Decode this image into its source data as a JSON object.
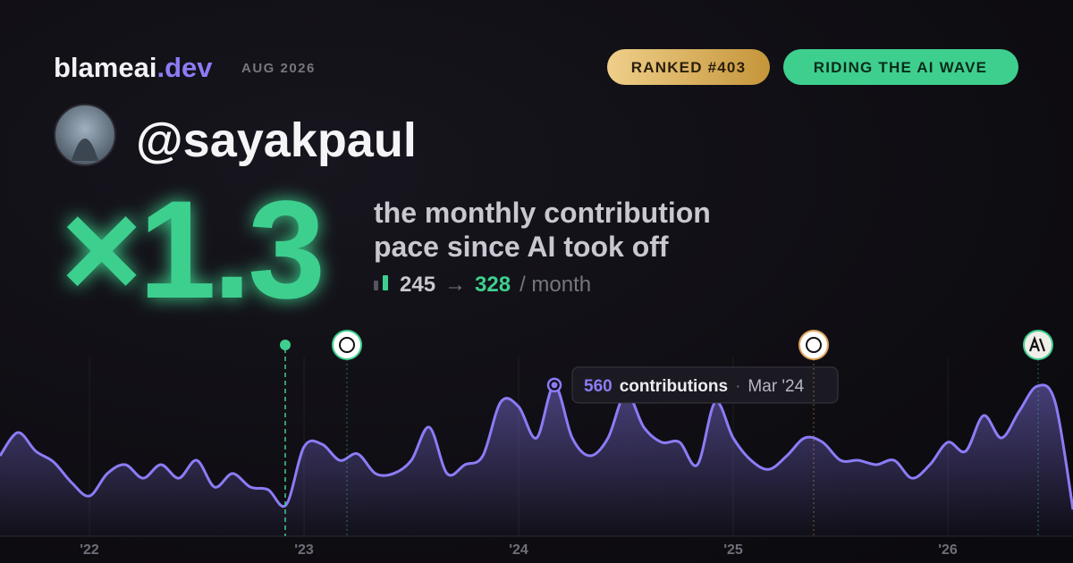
{
  "header": {
    "brand": "blameai",
    "brand_suffix": ".dev",
    "date": "AUG 2026",
    "badges": [
      "RANKED #403",
      "RIDING THE AI WAVE"
    ]
  },
  "profile": {
    "handle": "@sayakpaul"
  },
  "headline": {
    "multiplier": "×1.3",
    "lines": [
      "the monthly contribution",
      "pace since AI took off"
    ],
    "before": "245",
    "arrow": "→",
    "after": "328",
    "unit": "/ month"
  },
  "chart_data": {
    "type": "line",
    "categories": [
      null,
      null,
      null,
      null,
      null,
      "'22",
      null,
      null,
      null,
      null,
      null,
      null,
      null,
      null,
      null,
      null,
      null,
      "'23",
      null,
      null,
      null,
      null,
      null,
      null,
      null,
      null,
      null,
      null,
      null,
      "'24",
      null,
      null,
      null,
      null,
      null,
      null,
      null,
      null,
      null,
      null,
      null,
      "'25",
      null,
      null,
      null,
      null,
      null,
      null,
      null,
      null,
      null,
      null,
      null,
      "'26",
      null,
      null,
      null,
      null,
      null,
      null,
      null
    ],
    "series": [
      {
        "name": "contributions",
        "color": "#8b7cf6",
        "values": [
          298,
          384,
          315,
          275,
          199,
          149,
          232,
          265,
          215,
          265,
          215,
          281,
          182,
          232,
          182,
          172,
          116,
          331,
          341,
          281,
          305,
          232,
          232,
          281,
          404,
          232,
          265,
          298,
          497,
          480,
          364,
          560,
          364,
          298,
          364,
          530,
          404,
          348,
          348,
          265,
          497,
          364,
          281,
          248,
          298,
          364,
          348,
          281,
          281,
          265,
          281,
          215,
          265,
          348,
          315,
          447,
          364,
          464,
          556,
          497,
          99
        ]
      }
    ],
    "ylim": [
      0,
      2000
    ],
    "tooltip": {
      "label": "contributions",
      "separator": "·",
      "date": "Mar '24"
    }
  }
}
